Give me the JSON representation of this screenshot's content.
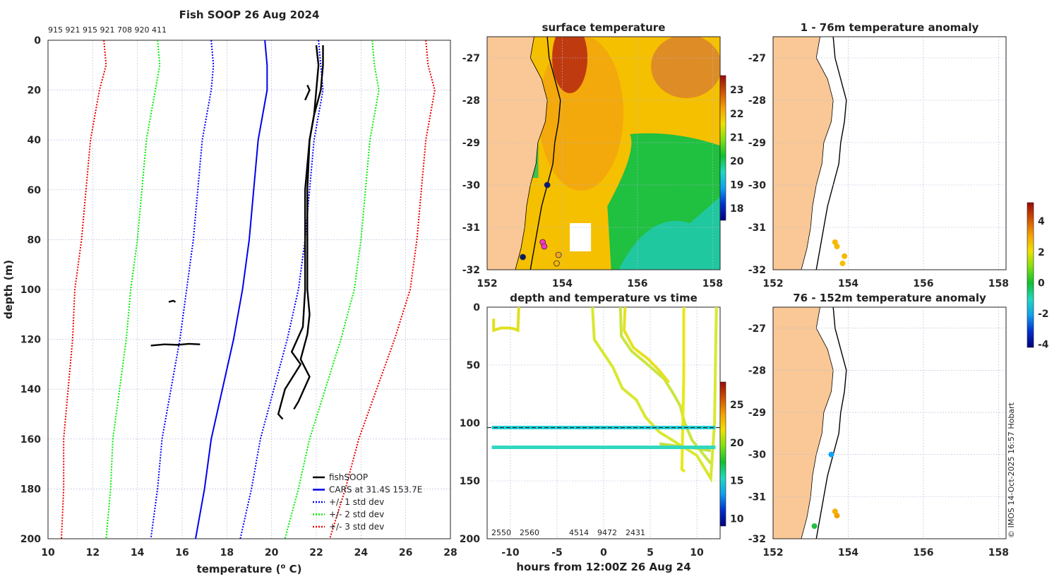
{
  "chart_data": [
    {
      "type": "line",
      "id": "profile",
      "title": "Fish SOOP 26 Aug 2024",
      "serials": "915 921 915 921 708 920 411",
      "xlabel": "temperature (",
      "xlabel_sup": "o",
      "xlabel_end": " C)",
      "ylabel": "depth (m)",
      "xlim": [
        10,
        28
      ],
      "ylim": [
        0,
        200
      ],
      "xticks": [
        10,
        12,
        14,
        16,
        18,
        20,
        22,
        24,
        26,
        28
      ],
      "yticks": [
        0,
        20,
        40,
        60,
        80,
        100,
        120,
        140,
        160,
        180,
        200
      ],
      "cars": {
        "depth": [
          0,
          10,
          20,
          30,
          40,
          60,
          80,
          100,
          120,
          140,
          160,
          180,
          200
        ],
        "mean": [
          19.7,
          19.8,
          19.8,
          19.6,
          19.4,
          19.2,
          19.0,
          18.7,
          18.3,
          17.8,
          17.3,
          17.0,
          16.6
        ],
        "std": [
          2.4,
          2.4,
          2.5,
          2.5,
          2.5,
          2.5,
          2.5,
          2.5,
          2.4,
          2.3,
          2.2,
          2.1,
          2.0
        ]
      },
      "fishsoop": [
        {
          "t": [
            22.0,
            22.1,
            22.0,
            21.9,
            21.7,
            21.6,
            21.5,
            21.5,
            21.5,
            21.4,
            20.9,
            21.3,
            20.6,
            20.3,
            20.5
          ],
          "d": [
            2,
            10,
            20,
            30,
            40,
            50,
            60,
            80,
            100,
            115,
            125,
            130,
            140,
            150,
            152
          ]
        },
        {
          "t": [
            22.3,
            22.3,
            22.2,
            21.9,
            21.7,
            21.6,
            21.6,
            21.6,
            21.7,
            21.6,
            21.3,
            21.7,
            21.2,
            21.0
          ],
          "d": [
            2,
            10,
            20,
            30,
            40,
            60,
            80,
            100,
            110,
            118,
            128,
            135,
            145,
            148
          ]
        },
        {
          "t": [
            21.6,
            21.7,
            21.6,
            21.5
          ],
          "d": [
            18,
            20,
            22,
            24
          ]
        },
        {
          "t": [
            14.6,
            15.2,
            15.8,
            16.3,
            16.8
          ],
          "d": [
            122.5,
            122,
            122.2,
            121.8,
            122
          ]
        },
        {
          "t": [
            15.4,
            15.6,
            15.7
          ],
          "d": [
            105,
            104.5,
            105
          ]
        }
      ],
      "legend": [
        "fishSOOP",
        "CARS at 31.4S 153.7E",
        "+/- 1 std dev",
        "+/- 2 std dev",
        "+/- 3 std dev"
      ],
      "colors": {
        "fishsoop": "#000000",
        "cars": "#0000ee",
        "std1": "#0000ff",
        "std2": "#00ee00",
        "std3": "#ee0000"
      }
    },
    {
      "type": "heatmap",
      "id": "sst",
      "title": "surface temperature",
      "xlim": [
        152,
        158.2
      ],
      "ylim": [
        -32,
        -26.5
      ],
      "xticks": [
        152,
        154,
        156,
        158
      ],
      "yticks": [
        -27,
        -28,
        -29,
        -30,
        -31,
        -32
      ],
      "colorbar": {
        "min": 17.5,
        "max": 23.6,
        "ticks": [
          18,
          19,
          20,
          21,
          22,
          23
        ]
      },
      "points": [
        {
          "lon": 153.6,
          "lat": -30.0,
          "c": "#0a1a7a"
        },
        {
          "lon": 153.48,
          "lat": -31.35,
          "c": "#ff33cc"
        },
        {
          "lon": 153.52,
          "lat": -31.45,
          "c": "#ff33cc"
        },
        {
          "lon": 153.9,
          "lat": -31.65,
          "c": "#f5a623"
        },
        {
          "lon": 153.85,
          "lat": -31.85,
          "c": "#f5b800"
        },
        {
          "lon": 152.95,
          "lat": -31.7,
          "c": "#0a1a6a"
        }
      ]
    },
    {
      "type": "line",
      "id": "timedepth",
      "title": "depth and temperature vs time",
      "xlabel": "hours from 12:00Z 26 Aug 24",
      "xlim": [
        -12.5,
        12.5
      ],
      "ylim": [
        0,
        200
      ],
      "xticks": [
        -10,
        -5,
        0,
        5,
        10
      ],
      "yticks": [
        0,
        50,
        100,
        150,
        200
      ],
      "colorbar": {
        "min": 9,
        "max": 28,
        "ticks": [
          10,
          15,
          20,
          25
        ]
      },
      "reference_depth": 104,
      "traces": [
        {
          "h": [
            -9.1,
            -9.2,
            -9.5,
            -10,
            -11,
            -11.8,
            -11.8
          ],
          "d": [
            0,
            20,
            19,
            18,
            18,
            20,
            10
          ],
          "c": "#e0e020"
        },
        {
          "h": [
            -1.2,
            -1.0,
            0,
            1,
            2,
            3.5,
            4.5,
            6,
            8,
            10,
            11.5,
            11.9,
            12.1
          ],
          "d": [
            0,
            28,
            40,
            52,
            70,
            80,
            95,
            108,
            118,
            128,
            148,
            100,
            0
          ],
          "c": "#d8e830"
        },
        {
          "h": [
            1.8,
            1.9,
            3,
            4.5,
            5.5,
            6.5,
            7.5,
            8.2,
            8.7,
            9.5,
            11,
            11.5
          ],
          "d": [
            0,
            25,
            38,
            48,
            55,
            62,
            75,
            85,
            100,
            115,
            130,
            135
          ],
          "c": "#c8e640"
        },
        {
          "h": [
            2.3,
            2.2,
            3.2,
            4.8,
            6,
            7
          ],
          "d": [
            0,
            20,
            35,
            45,
            55,
            65
          ],
          "c": "#e8e020"
        },
        {
          "h": [
            8.6,
            8.6,
            8.5,
            8.4,
            8.7
          ],
          "d": [
            0,
            60,
            100,
            140,
            142
          ],
          "c": "#e8e818"
        },
        {
          "h": [
            6,
            8,
            10,
            11.5
          ],
          "d": [
            118,
            120,
            122,
            124
          ],
          "c": "#c0e040"
        }
      ],
      "bands": [
        {
          "depth": 104,
          "c": "#20d0d8"
        },
        {
          "depth": 121,
          "c": "#30d8c0"
        }
      ],
      "bottom_labels": [
        "2550",
        "2560",
        "4514",
        "9472",
        "2431"
      ]
    },
    {
      "type": "scatter",
      "id": "anom1",
      "title": "1 - 76m temperature anomaly",
      "xlim": [
        152,
        158.2
      ],
      "ylim": [
        -32,
        -26.5
      ],
      "xticks": [
        152,
        154,
        156,
        158
      ],
      "yticks": [
        -27,
        -28,
        -29,
        -30,
        -31,
        -32
      ],
      "points": [
        {
          "lon": 153.65,
          "lat": -31.35,
          "c": "#f5b800"
        },
        {
          "lon": 153.7,
          "lat": -31.45,
          "c": "#f5b800"
        },
        {
          "lon": 153.9,
          "lat": -31.68,
          "c": "#f5b800"
        },
        {
          "lon": 153.85,
          "lat": -31.85,
          "c": "#f5c000"
        }
      ]
    },
    {
      "type": "scatter",
      "id": "anom2",
      "title": "76 - 152m temperature anomaly",
      "xlim": [
        152,
        158.2
      ],
      "ylim": [
        -32,
        -26.5
      ],
      "xticks": [
        152,
        154,
        156,
        158
      ],
      "yticks": [
        -27,
        -28,
        -29,
        -30,
        -31,
        -32
      ],
      "points": [
        {
          "lon": 153.55,
          "lat": -30.0,
          "c": "#10a0f0"
        },
        {
          "lon": 153.65,
          "lat": -31.35,
          "c": "#f5b000"
        },
        {
          "lon": 153.7,
          "lat": -31.45,
          "c": "#f5a000"
        },
        {
          "lon": 153.1,
          "lat": -31.7,
          "c": "#20c040"
        }
      ],
      "colorbar": {
        "min": -4.2,
        "max": 5.2,
        "ticks": [
          4,
          2,
          0,
          -2,
          -4
        ]
      }
    }
  ],
  "map": {
    "coast": [
      [
        153.25,
        -26.5
      ],
      [
        153.15,
        -27.0
      ],
      [
        153.45,
        -27.5
      ],
      [
        153.6,
        -28.0
      ],
      [
        153.55,
        -28.5
      ],
      [
        153.35,
        -29.0
      ],
      [
        153.3,
        -29.5
      ],
      [
        153.15,
        -30.0
      ],
      [
        153.05,
        -30.5
      ],
      [
        153.0,
        -31.0
      ],
      [
        152.9,
        -31.5
      ],
      [
        152.75,
        -32.0
      ]
    ],
    "shelf": [
      [
        153.6,
        -26.5
      ],
      [
        153.65,
        -27.0
      ],
      [
        153.8,
        -27.5
      ],
      [
        153.95,
        -28.0
      ],
      [
        153.9,
        -28.5
      ],
      [
        153.8,
        -29.0
      ],
      [
        153.75,
        -29.5
      ],
      [
        153.6,
        -30.0
      ],
      [
        153.45,
        -30.5
      ],
      [
        153.35,
        -31.0
      ],
      [
        153.25,
        -31.5
      ],
      [
        153.15,
        -32.0
      ]
    ],
    "land": "#f9c896"
  },
  "credit": "© IMOS 14-Oct-2025 16:57 Hobart"
}
